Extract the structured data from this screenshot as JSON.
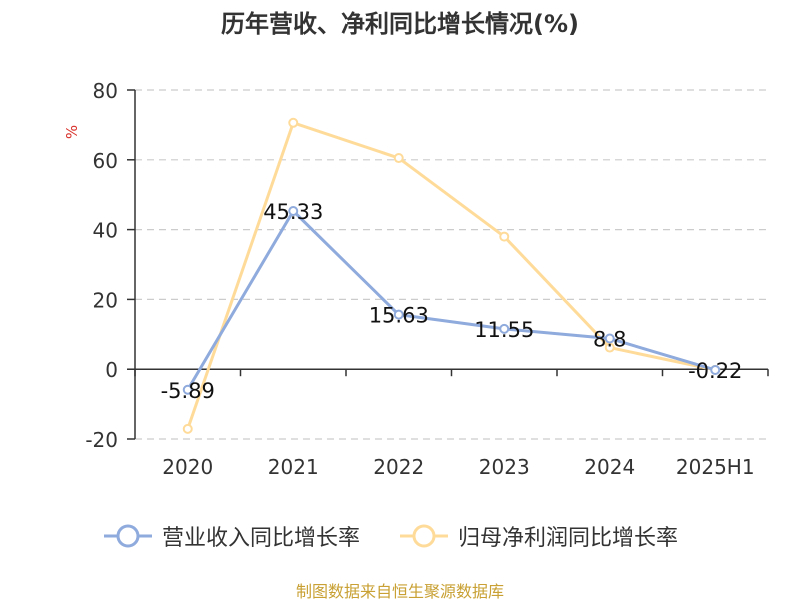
{
  "title": "历年营收、净利同比增长情况(%)",
  "source": "制图数据来自恒生聚源数据库",
  "colors": {
    "revenue": "#8faadc",
    "profit": "#ffdb9a",
    "unit": "#d9322c",
    "grid": "#cccccc"
  },
  "chart_data": {
    "type": "line",
    "ylabel": "%",
    "categories": [
      "2020",
      "2021",
      "2022",
      "2023",
      "2024",
      "2025H1"
    ],
    "ylim": [
      -20,
      80
    ],
    "yticks": [
      -20,
      0,
      20,
      40,
      60,
      80
    ],
    "grid": true,
    "legend_position": "bottom",
    "series": [
      {
        "name": "营业收入同比增长率",
        "values": [
          -5.89,
          45.33,
          15.63,
          11.55,
          8.8,
          -0.22
        ],
        "labels": [
          "-5.89",
          "45.33",
          "15.63",
          "11.55",
          "8.8",
          "-0.22"
        ]
      },
      {
        "name": "归母净利润同比增长率",
        "values": [
          -17.1,
          70.6,
          60.5,
          38.0,
          6.2,
          -0.2
        ]
      }
    ]
  }
}
